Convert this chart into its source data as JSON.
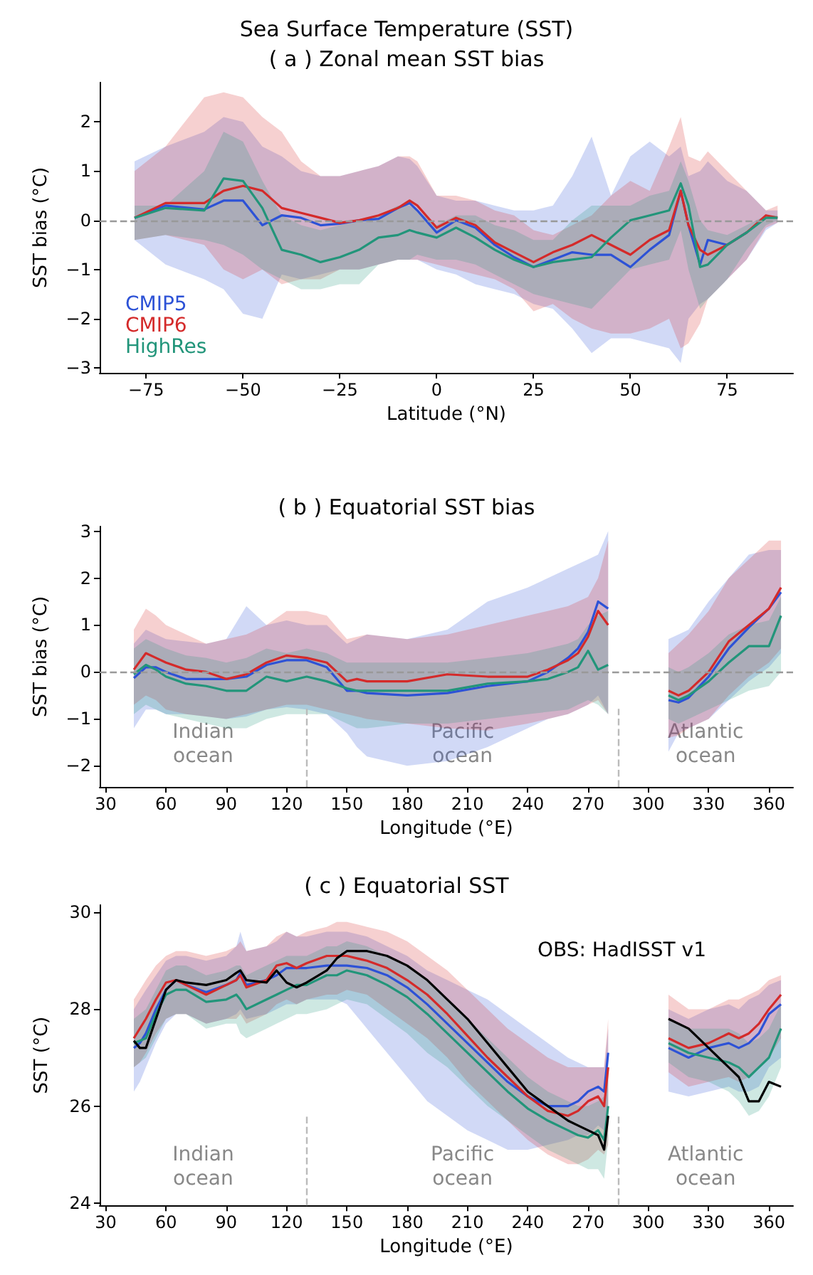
{
  "chart_data": [
    {
      "type": "line",
      "title": "Sea Surface Temperature (SST)",
      "subtitle": "( a ) Zonal mean SST bias",
      "xlabel": "Latitude (°N)",
      "ylabel": "SST bias (°C)",
      "legend": "bottom left",
      "marker": "none",
      "grid": false,
      "xlim": [
        -87,
        92
      ],
      "ylim": [
        -3.1,
        2.8
      ],
      "xticks": [
        {
          "value": -75,
          "label": "−75"
        },
        {
          "value": -50,
          "label": "−50"
        },
        {
          "value": -25,
          "label": "−25"
        },
        0,
        25,
        50,
        75
      ],
      "yticks": [
        {
          "value": -3,
          "label": "−3"
        },
        {
          "value": -2,
          "label": "−2"
        },
        {
          "value": -1,
          "label": "−1"
        },
        0,
        1,
        2
      ],
      "ref_lines": [
        {
          "axis": "y",
          "value": 0,
          "color": "#999999",
          "line_style": "dashed"
        }
      ],
      "x": [
        -78,
        -70,
        -60,
        -55,
        -50,
        -45,
        -40,
        -35,
        -30,
        -25,
        -20,
        -15,
        -10,
        -7,
        -5,
        0,
        5,
        10,
        15,
        20,
        25,
        30,
        35,
        40,
        45,
        50,
        55,
        60,
        63,
        65,
        68,
        70,
        75,
        80,
        85,
        88
      ],
      "series": [
        {
          "name": "CMIP5",
          "color": "#2d52d6",
          "values": [
            0.05,
            0.3,
            0.22,
            0.4,
            0.4,
            -0.1,
            0.1,
            0.05,
            -0.1,
            -0.07,
            0,
            0.03,
            0.25,
            0.35,
            0.2,
            -0.25,
            0,
            -0.15,
            -0.5,
            -0.75,
            -0.95,
            -0.8,
            -0.65,
            -0.7,
            -0.7,
            -0.95,
            -0.6,
            -0.3,
            0.6,
            -0.1,
            -0.9,
            -0.4,
            -0.5,
            -0.25,
            null,
            null
          ],
          "upper": [
            1.2,
            1.5,
            1.8,
            2.1,
            2.0,
            1.5,
            1.3,
            1.0,
            0.9,
            0.9,
            1.0,
            1.1,
            1.3,
            1.25,
            1.1,
            0.5,
            0.4,
            0.4,
            0.3,
            0.2,
            0.2,
            0.3,
            0.9,
            1.7,
            0.5,
            1.3,
            1.6,
            1.3,
            1.5,
            0.9,
            1.0,
            1.2,
            0.8,
            0.6,
            0.2,
            0.2
          ],
          "lower": [
            -0.4,
            -0.9,
            -1.2,
            -1.4,
            -1.9,
            -2.0,
            -1.1,
            -1.2,
            -1.1,
            -1.0,
            -1.0,
            -0.9,
            -0.8,
            -0.8,
            -0.8,
            -1.0,
            -1.1,
            -1.3,
            -1.4,
            -1.5,
            -1.7,
            -1.8,
            -2.2,
            -2.7,
            -2.4,
            -2.4,
            -2.5,
            -2.6,
            -2.9,
            -2.0,
            -1.7,
            -1.6,
            -1.2,
            -0.8,
            -0.2,
            -0.05
          ]
        },
        {
          "name": "CMIP6",
          "color": "#d42a2a",
          "values": [
            0.05,
            0.35,
            0.35,
            0.6,
            0.7,
            0.6,
            0.25,
            0.15,
            0.05,
            -0.05,
            0,
            0.1,
            0.25,
            0.4,
            0.3,
            -0.15,
            0.05,
            -0.1,
            -0.45,
            -0.65,
            -0.85,
            -0.65,
            -0.5,
            -0.3,
            -0.5,
            -0.7,
            -0.4,
            -0.2,
            0.6,
            -0.1,
            -0.6,
            -0.7,
            -0.5,
            -0.25,
            0.1,
            0.05
          ],
          "upper": [
            1.0,
            1.5,
            2.5,
            2.6,
            2.5,
            2.1,
            1.8,
            1.2,
            0.9,
            0.9,
            1.0,
            1.1,
            1.3,
            1.3,
            1.2,
            0.5,
            0.5,
            0.4,
            0.2,
            0.1,
            -0.2,
            -0.3,
            -0.1,
            0.1,
            0.5,
            0.8,
            0.6,
            1.5,
            2.1,
            1.3,
            1.2,
            1.4,
            1.0,
            0.6,
            0.2,
            0.3
          ],
          "lower": [
            -0.4,
            -0.3,
            -0.5,
            -1.0,
            -1.2,
            -1.0,
            -1.3,
            -1.2,
            -1.2,
            -1.0,
            -1.0,
            -0.9,
            -0.8,
            -0.8,
            -0.8,
            -0.9,
            -1.0,
            -1.1,
            -1.2,
            -1.4,
            -1.85,
            -1.7,
            -2.0,
            -2.2,
            -2.3,
            -2.3,
            -2.2,
            -2.0,
            -2.6,
            -2.5,
            -2.1,
            -1.6,
            -1.2,
            -0.8,
            -0.15,
            -0.05
          ]
        },
        {
          "name": "HighRes",
          "color": "#22957a",
          "values": [
            0.05,
            0.25,
            0.2,
            0.85,
            0.8,
            0.25,
            -0.6,
            -0.7,
            -0.85,
            -0.75,
            -0.6,
            -0.35,
            -0.3,
            -0.2,
            -0.25,
            -0.35,
            -0.15,
            -0.35,
            -0.6,
            -0.8,
            -0.95,
            -0.85,
            -0.8,
            -0.75,
            -0.35,
            0,
            0.1,
            0.2,
            0.75,
            0.3,
            -0.95,
            -0.9,
            -0.5,
            -0.25,
            0.05,
            0.05
          ],
          "upper": [
            0.3,
            0.3,
            1.0,
            1.8,
            1.6,
            0.8,
            0.1,
            -0.1,
            -0.2,
            -0.1,
            0,
            0.1,
            0.3,
            0.3,
            0.2,
            -0.1,
            0.1,
            0.1,
            -0.1,
            -0.2,
            -0.4,
            -0.4,
            0,
            0.3,
            0.3,
            0.3,
            0.5,
            0.6,
            1.2,
            0.8,
            0,
            -0.2,
            -0.3,
            -0.1,
            0.1,
            0.1
          ],
          "lower": [
            -0.4,
            -0.3,
            -0.4,
            -0.5,
            -0.7,
            -1.0,
            -1.2,
            -1.4,
            -1.4,
            -1.3,
            -1.3,
            -0.9,
            -0.8,
            -0.8,
            -0.7,
            -0.8,
            -0.8,
            -0.9,
            -1.1,
            -1.3,
            -1.5,
            -1.6,
            -1.7,
            -1.8,
            -1.4,
            -1.0,
            -0.9,
            -0.8,
            -0.2,
            -1.0,
            -1.8,
            -1.6,
            -1.2,
            -0.6,
            -0.1,
            0.0
          ]
        }
      ]
    },
    {
      "type": "line",
      "title": "( b ) Equatorial SST bias",
      "xlabel": "Longitude (°E)",
      "ylabel": "SST bias (°C)",
      "marker": "none",
      "grid": false,
      "xlim": [
        27,
        372
      ],
      "ylim": [
        -2.45,
        3.1
      ],
      "xticks": [
        30,
        60,
        90,
        120,
        150,
        180,
        210,
        240,
        270,
        300,
        330,
        360
      ],
      "yticks": [
        {
          "value": -2,
          "label": "−2"
        },
        {
          "value": -1,
          "label": "−1"
        },
        0,
        1,
        2,
        3
      ],
      "ref_lines": [
        {
          "axis": "y",
          "value": 0,
          "color": "#999999",
          "line_style": "dashed"
        },
        {
          "axis": "x",
          "value": 130,
          "color": "#bbbbbb",
          "line_style": "dashed"
        },
        {
          "axis": "x",
          "value": 285,
          "color": "#bbbbbb",
          "line_style": "dashed"
        }
      ],
      "annotations": [
        "Indian\nocean",
        "Pacific\nocean",
        "Atlantic\nocean"
      ],
      "x": [
        44,
        50,
        55,
        60,
        70,
        80,
        90,
        100,
        110,
        120,
        130,
        140,
        150,
        155,
        160,
        180,
        200,
        220,
        240,
        250,
        260,
        265,
        270,
        275,
        280,
        295,
        310,
        315,
        320,
        330,
        340,
        350,
        360,
        366
      ],
      "series": [
        {
          "color": "#2d52d6",
          "values": [
            -0.13,
            0.1,
            0.1,
            0.0,
            -0.15,
            -0.15,
            -0.15,
            -0.1,
            0.15,
            0.25,
            0.25,
            0.1,
            -0.4,
            -0.4,
            -0.45,
            -0.5,
            -0.45,
            -0.3,
            -0.2,
            0.0,
            0.3,
            0.5,
            0.85,
            1.5,
            1.35,
            null,
            -0.6,
            -0.65,
            -0.55,
            -0.1,
            0.5,
            0.95,
            1.35,
            1.7
          ],
          "upper": [
            0.6,
            0.9,
            0.8,
            0.7,
            0.65,
            0.6,
            0.7,
            1.4,
            1.0,
            1.1,
            1.0,
            1.0,
            0.6,
            0.7,
            0.8,
            0.7,
            0.9,
            1.5,
            1.8,
            2.0,
            2.2,
            2.3,
            2.4,
            2.5,
            3.0,
            null,
            0.7,
            0.8,
            0.9,
            1.5,
            2.0,
            2.5,
            2.6,
            2.6
          ],
          "lower": [
            -1.2,
            -0.8,
            -0.8,
            -0.9,
            -0.9,
            -0.95,
            -1.0,
            -0.95,
            -0.8,
            -0.75,
            -0.8,
            -0.9,
            -1.3,
            -1.6,
            -1.8,
            -2.0,
            -1.9,
            -1.6,
            -1.2,
            -1.0,
            -0.9,
            -0.8,
            -0.7,
            -0.5,
            -0.9,
            null,
            -1.7,
            -1.3,
            -1.2,
            -1.0,
            -0.6,
            -0.2,
            0.1,
            0.4
          ]
        },
        {
          "color": "#d42a2a",
          "values": [
            0.05,
            0.4,
            0.3,
            0.2,
            0.05,
            0.0,
            -0.15,
            -0.05,
            0.2,
            0.35,
            0.3,
            0.2,
            -0.2,
            -0.15,
            -0.2,
            -0.2,
            -0.05,
            -0.1,
            -0.1,
            0.05,
            0.25,
            0.4,
            0.75,
            1.3,
            1.0,
            null,
            -0.4,
            -0.5,
            -0.4,
            0.0,
            0.65,
            1.0,
            1.35,
            1.8
          ],
          "upper": [
            0.9,
            1.35,
            1.2,
            1.0,
            0.8,
            0.6,
            0.7,
            0.8,
            1.0,
            1.3,
            1.3,
            1.2,
            0.7,
            0.75,
            0.8,
            0.7,
            0.8,
            1.0,
            1.2,
            1.3,
            1.4,
            1.5,
            1.6,
            2.0,
            2.8,
            null,
            0.4,
            0.6,
            0.8,
            1.3,
            2.0,
            2.4,
            2.8,
            2.8
          ],
          "lower": [
            -0.7,
            -0.5,
            -0.6,
            -0.8,
            -0.9,
            -0.95,
            -1.0,
            -0.9,
            -0.8,
            -0.7,
            -0.7,
            -0.8,
            -0.9,
            -0.95,
            -1.0,
            -1.1,
            -1.2,
            -1.25,
            -1.1,
            -1.0,
            -0.9,
            -0.8,
            -0.7,
            -0.6,
            -0.9,
            null,
            -1.4,
            -1.35,
            -1.2,
            -1.0,
            -0.5,
            -0.1,
            0.2,
            0.5
          ]
        },
        {
          "color": "#22957a",
          "values": [
            -0.05,
            0.15,
            0.05,
            -0.1,
            -0.25,
            -0.3,
            -0.4,
            -0.4,
            -0.1,
            -0.2,
            -0.1,
            -0.2,
            -0.35,
            -0.4,
            -0.4,
            -0.4,
            -0.4,
            -0.25,
            -0.2,
            -0.15,
            0.0,
            0.1,
            0.45,
            0.05,
            0.15,
            null,
            -0.5,
            -0.6,
            -0.5,
            -0.2,
            0.2,
            0.55,
            0.55,
            1.2
          ],
          "upper": [
            0.5,
            0.7,
            0.6,
            0.5,
            0.35,
            0.3,
            0.2,
            0.3,
            0.5,
            0.4,
            0.5,
            0.4,
            0.2,
            0.2,
            0.2,
            0.2,
            0.2,
            0.3,
            0.4,
            0.5,
            0.6,
            0.7,
            1.0,
            1.2,
            1.3,
            null,
            0.1,
            0.0,
            0.1,
            0.4,
            0.8,
            1.0,
            1.1,
            1.6
          ],
          "lower": [
            -0.9,
            -0.7,
            -0.8,
            -0.9,
            -1.0,
            -1.1,
            -1.2,
            -1.2,
            -1.0,
            -0.9,
            -0.9,
            -0.9,
            -1.1,
            -1.2,
            -1.2,
            -1.1,
            -1.1,
            -1.0,
            -0.9,
            -0.85,
            -0.8,
            -0.7,
            -0.6,
            -0.7,
            -0.9,
            null,
            -1.0,
            -1.1,
            -1.0,
            -0.8,
            -0.6,
            -0.4,
            -0.3,
            0.0
          ]
        }
      ]
    },
    {
      "type": "line",
      "title": "( c ) Equatorial SST",
      "xlabel": "Longitude (°E)",
      "ylabel": "SST (°C)",
      "legend": "top right",
      "marker": "none",
      "grid": false,
      "xlim": [
        27,
        372
      ],
      "ylim": [
        23.95,
        30.15
      ],
      "xticks": [
        30,
        60,
        90,
        120,
        150,
        180,
        210,
        240,
        270,
        300,
        330,
        360
      ],
      "yticks": [
        24,
        26,
        28,
        30
      ],
      "ref_lines": [
        {
          "axis": "x",
          "value": 130,
          "color": "#bbbbbb",
          "line_style": "dashed"
        },
        {
          "axis": "x",
          "value": 285,
          "color": "#bbbbbb",
          "line_style": "dashed"
        }
      ],
      "annotations": [
        "Indian\nocean",
        "Pacific\nocean",
        "Atlantic\nocean"
      ],
      "x": [
        44,
        47,
        50,
        55,
        60,
        65,
        70,
        80,
        90,
        95,
        97,
        100,
        110,
        115,
        120,
        125,
        130,
        140,
        145,
        150,
        160,
        170,
        180,
        190,
        200,
        210,
        220,
        230,
        240,
        250,
        260,
        265,
        270,
        275,
        278,
        280,
        295,
        310,
        320,
        330,
        340,
        345,
        350,
        355,
        360,
        366
      ],
      "series": [
        {
          "color": "#2d52d6",
          "values": [
            27.2,
            27.3,
            27.5,
            28.0,
            28.4,
            28.6,
            28.5,
            28.35,
            28.5,
            28.6,
            28.75,
            28.5,
            28.6,
            28.7,
            28.85,
            28.85,
            28.85,
            28.9,
            28.9,
            28.9,
            28.85,
            28.7,
            28.45,
            28.1,
            27.7,
            27.3,
            26.9,
            26.5,
            26.2,
            26.0,
            26.0,
            26.1,
            26.3,
            26.4,
            26.3,
            27.1,
            null,
            27.2,
            27.0,
            27.2,
            27.3,
            27.2,
            27.3,
            27.5,
            27.9,
            28.1
          ],
          "upper": [
            28.0,
            28.2,
            28.4,
            28.7,
            29.0,
            29.1,
            29.1,
            29.0,
            29.1,
            29.3,
            29.6,
            29.2,
            29.3,
            29.4,
            29.6,
            29.5,
            29.5,
            29.6,
            29.6,
            29.6,
            29.5,
            29.3,
            29.1,
            28.8,
            28.6,
            28.4,
            28.2,
            27.9,
            27.6,
            27.3,
            27.0,
            26.9,
            26.8,
            26.8,
            26.8,
            27.6,
            null,
            28.0,
            27.8,
            28.0,
            28.1,
            28.0,
            28.2,
            28.3,
            28.5,
            28.6
          ],
          "lower": [
            26.3,
            26.5,
            26.8,
            27.3,
            27.7,
            27.9,
            27.9,
            27.7,
            27.8,
            27.9,
            28.0,
            27.8,
            27.9,
            28.0,
            28.1,
            28.1,
            28.2,
            28.2,
            28.2,
            28.1,
            27.6,
            27.1,
            26.6,
            26.1,
            25.8,
            25.5,
            25.3,
            25.1,
            25.1,
            25.2,
            25.3,
            25.4,
            25.4,
            25.6,
            25.5,
            25.7,
            null,
            26.3,
            26.2,
            26.3,
            26.4,
            26.3,
            26.3,
            26.4,
            26.8,
            27.0
          ]
        },
        {
          "color": "#d42a2a",
          "values": [
            27.4,
            27.6,
            27.8,
            28.2,
            28.55,
            28.6,
            28.5,
            28.3,
            28.5,
            28.6,
            28.7,
            28.45,
            28.6,
            28.9,
            28.95,
            28.85,
            28.95,
            29.1,
            29.1,
            29.1,
            29.0,
            28.85,
            28.6,
            28.3,
            27.9,
            27.45,
            27.0,
            26.6,
            26.2,
            25.9,
            25.8,
            25.9,
            26.1,
            26.2,
            26.0,
            26.8,
            null,
            27.4,
            27.2,
            27.3,
            27.5,
            27.4,
            27.5,
            27.7,
            28.0,
            28.3
          ],
          "upper": [
            28.2,
            28.4,
            28.6,
            28.9,
            29.1,
            29.2,
            29.2,
            29.1,
            29.2,
            29.3,
            29.4,
            29.2,
            29.3,
            29.5,
            29.6,
            29.5,
            29.6,
            29.7,
            29.8,
            29.8,
            29.7,
            29.6,
            29.4,
            29.1,
            28.8,
            28.4,
            28.0,
            27.6,
            27.3,
            27.0,
            26.8,
            26.8,
            26.8,
            26.8,
            26.8,
            27.8,
            null,
            28.3,
            28.0,
            28.0,
            28.2,
            28.2,
            28.3,
            28.4,
            28.6,
            28.7
          ],
          "lower": [
            26.8,
            26.9,
            27.1,
            27.5,
            27.8,
            27.9,
            27.9,
            27.7,
            27.8,
            27.8,
            27.9,
            27.7,
            27.9,
            28.1,
            28.2,
            28.1,
            28.2,
            28.3,
            28.3,
            28.4,
            28.3,
            28.0,
            27.7,
            27.4,
            27.0,
            26.5,
            26.1,
            25.7,
            25.3,
            25.0,
            24.8,
            24.8,
            24.9,
            25.1,
            25.0,
            25.2,
            null,
            26.7,
            26.4,
            26.5,
            26.6,
            26.5,
            26.6,
            26.8,
            27.0,
            27.4
          ]
        },
        {
          "color": "#22957a",
          "values": [
            27.3,
            27.35,
            27.4,
            27.9,
            28.3,
            28.4,
            28.4,
            28.15,
            28.2,
            28.3,
            28.2,
            28.0,
            28.2,
            28.3,
            28.4,
            28.5,
            28.5,
            28.7,
            28.7,
            28.8,
            28.7,
            28.5,
            28.25,
            27.9,
            27.5,
            27.1,
            26.7,
            26.3,
            25.95,
            25.7,
            25.5,
            25.4,
            25.35,
            25.5,
            25.3,
            26.0,
            null,
            27.3,
            27.1,
            27.0,
            26.9,
            26.8,
            26.6,
            26.8,
            27.0,
            27.6
          ],
          "upper": [
            27.8,
            27.9,
            28.0,
            28.4,
            28.8,
            28.9,
            28.9,
            28.7,
            28.8,
            28.9,
            28.9,
            28.7,
            28.9,
            29.0,
            29.1,
            29.1,
            29.1,
            29.3,
            29.3,
            29.4,
            29.3,
            29.1,
            28.9,
            28.6,
            28.2,
            27.8,
            27.4,
            27.0,
            26.6,
            26.3,
            26.1,
            26.0,
            26.0,
            26.1,
            26.2,
            26.8,
            null,
            27.8,
            27.6,
            27.6,
            27.6,
            27.5,
            27.3,
            27.4,
            27.6,
            28.1
          ],
          "lower": [
            26.8,
            26.9,
            27.0,
            27.4,
            27.8,
            27.9,
            27.9,
            27.6,
            27.7,
            27.7,
            27.5,
            27.4,
            27.6,
            27.7,
            27.8,
            27.9,
            27.9,
            28.0,
            28.1,
            28.2,
            28.1,
            27.8,
            27.5,
            27.1,
            26.8,
            26.4,
            26.0,
            25.7,
            25.4,
            25.1,
            24.9,
            24.8,
            24.7,
            24.7,
            24.5,
            25.3,
            null,
            26.9,
            26.6,
            26.5,
            26.3,
            26.1,
            25.8,
            25.9,
            26.2,
            26.8
          ]
        },
        {
          "name": "OBS: HadISST v1",
          "color": "#000000",
          "values": [
            27.35,
            27.2,
            27.2,
            27.8,
            28.4,
            28.6,
            28.55,
            28.5,
            28.6,
            28.75,
            28.8,
            28.6,
            28.55,
            28.8,
            28.55,
            28.45,
            28.55,
            28.8,
            29.05,
            29.2,
            29.2,
            29.1,
            28.9,
            28.6,
            28.2,
            27.8,
            27.3,
            26.8,
            26.3,
            26.0,
            25.7,
            25.6,
            25.5,
            25.4,
            25.1,
            25.8,
            null,
            27.8,
            27.6,
            27.2,
            26.8,
            26.6,
            26.1,
            26.1,
            26.5,
            26.4
          ]
        }
      ]
    }
  ]
}
